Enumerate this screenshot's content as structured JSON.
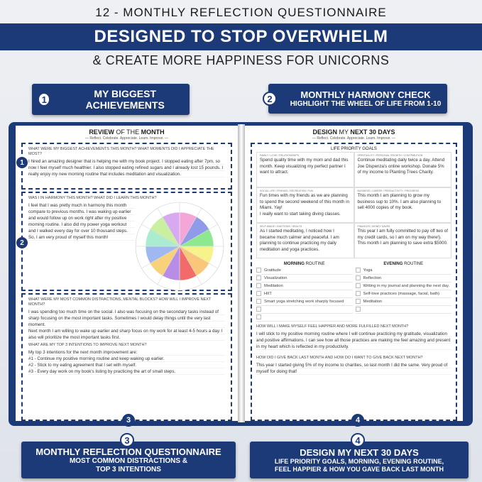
{
  "header": {
    "line1": "12 - MONTHLY REFLECTION QUESTIONNAIRE",
    "banner": "DESIGNED TO STOP OVERWHELM",
    "line3": "& CREATE MORE HAPPINESS FOR UNICORNS"
  },
  "callouts": [
    {
      "num": "1",
      "title": "MY BIGGEST ACHIEVEMENTS"
    },
    {
      "num": "2",
      "title": "MONTHLY HARMONY CHECK",
      "sub": "HIGHLIGHT THE WHEEL OF LIFE FROM 1-10"
    },
    {
      "num": "3",
      "title": "MONTHLY REFLECTION QUESTIONNAIRE",
      "sub": "MOST COMMON DISTRACTIONS &",
      "sub2": "TOP 3 INTENTIONS"
    },
    {
      "num": "4",
      "title": "DESIGN MY NEXT 30 DAYS",
      "sub": "LIFE PRIORITY GOALS, MORNING, EVENING ROUTINE,",
      "sub2": "FEEL HAPPIER & HOW YOU GAVE BACK LAST MONTH"
    }
  ],
  "left": {
    "title_a": "REVIEW",
    "title_b": " OF THE ",
    "title_c": "MONTH",
    "subtitle": "— Reflect. Celebrate. Appreciate. Learn. Improve. —",
    "q1": "WHAT WERE MY BIGGEST ACHIEVEMENTS THIS MONTH? WHAT MOMENTS DID I APPRECIATE THE MOST?",
    "a1": "I hired an amazing designer that is helping me with my book project. I stopped eating after 7pm, so now I feel myself much healthier. I also stopped eating refined sugars and I already lost 15 pounds. I really enjoy my new morning routine that includes meditation and visualization.",
    "q2": "WAS I IN HARMONY THIS MONTH? WHAT DID I LEARN THIS MONTH?",
    "a2": "I feel that I was pretty much in harmony this month compare to previous months. I was waking up earlier and would follow up on work right after my positive morning routine. I also did my power yoga workout and I walked every day for over 10 thousand steps. So, I am very proud of myself this month!",
    "wheel_colors": [
      "#f4a6d8",
      "#8f9be8",
      "#8ee88e",
      "#f7f38a",
      "#f9c67a",
      "#f26a6a",
      "#b78de8",
      "#f7d27a",
      "#9fb8ef",
      "#a9ecd0",
      "#c9f0a0",
      "#d7a9ef"
    ],
    "q3": "WHAT WERE MY MOST COMMON DISTRACTIONS, MENTAL BLOCKS? HOW WILL I IMPROVE NEXT MONTH?",
    "a3": "I was spending too much time on the social. I also was focusing on the secondary tasks instead of sharp focusing on the most important tasks. Sometimes I would delay things until the very last moment.\nNext month I am willing to wake up earlier and sharp focus on my work for at least 4-5 hours a day. I also will prioritize the most important tasks first.",
    "q4": "WHAT ARE MY TOP 3 INTENTIONS TO IMPROVE NEXT MONTH?",
    "a4": "My top 3 intentions for the next month improvement are:\n#1 - Continue my positive morning routine and keep waking up earlier.\n#2 - Stick to my eating agreement that I set with myself.\n#3 - Every day work on my book's listing by practicing the art of small steps."
  },
  "right": {
    "title_a": "DESIGN",
    "title_b": " MY ",
    "title_c": "NEXT 30 DAYS",
    "subtitle": "— Reflect. Celebrate. Appreciate. Learn. Improve. —",
    "goals_title": "LIFE PRIORITY GOALS",
    "goals": [
      {
        "label": "FAMILY / LOVE / RELATIONSHIPS",
        "text": "Spend quality time with my mom and dad this month. Keep visualizing my perfect partner I want to attract."
      },
      {
        "label": "SPIRITUALITY / PERSONAL GROWTH / CONTRIBUTION",
        "text": "Continue meditating daily twice a day. Attend Joe Dispenza's online workshop. Donate 5% of my income to Planting Trees Charity."
      },
      {
        "label": "SOCIAL LIFE / FRIENDS / RECREATION / FUN",
        "text": "Fun times with my friends as we are planning to spend the second weekend of this month in Miami. Yay!\nI really want to start taking diving classes."
      },
      {
        "label": "BUSINESS / CAREER / PRODUCTIVITY / PROGRESS",
        "text": "This month I am planning to grow my business sup to 10%. I am also planning to sell 4000 copies of my book."
      },
      {
        "label": "SELF-IMAGE / EMOTIONS / HEALTH",
        "text": "As I started meditating, I noticed how I became much calmer and peaceful. I am planning to continue practicing my daily meditation and yoga practices."
      },
      {
        "label": "FINANCES / MONEY SAVED",
        "text": "This year I am fully committed to pay off two of my credit cards, so I am on my way there!). This month I am planning to save extra $5000."
      }
    ],
    "morning_title_a": "MORNING",
    "morning_title_b": " ROUTINE",
    "morning": [
      "Gratitude",
      "Visualization",
      "Meditation",
      "HIIT",
      "Smart yoga stretching work sharply focused",
      "",
      ""
    ],
    "evening_title_a": "EVENING",
    "evening_title_b": " ROUTINE",
    "evening": [
      "Yoga",
      "Reflection",
      "Writing in my journal and planning the next day.",
      "Self-love practices (massage, facial, bath)",
      "Meditation",
      ""
    ],
    "q1": "HOW WILL I MAKE MYSELF FEEL HAPPIER AND MORE FULFILLED NEXT MONTH?",
    "a1": "I will stick to my positive morning routine where I will continue practicing my gratitude, visualization and positive affirmations. I can see how all those practices are making me feel amazing and present in my heart which is reflected in my productivity.",
    "q2": "HOW DID I GIVE BACK LAST MONTH AND HOW DO I WANT TO GIVE BACK NEXT MONTH?",
    "a2": "This year I started giving 5% of my income to charities, so last month I did the same. Very proud of myself for doing that!"
  }
}
